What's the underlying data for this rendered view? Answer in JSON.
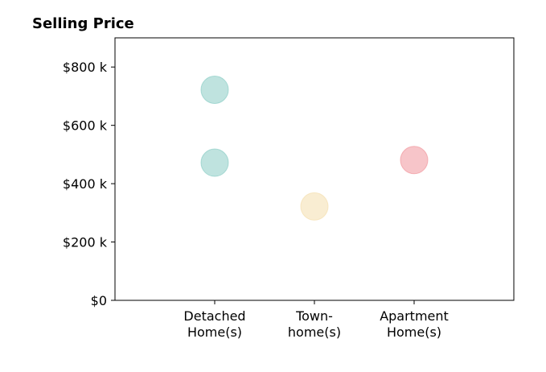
{
  "chart_data": {
    "type": "scatter",
    "title": "Selling Price",
    "xlabel": "",
    "ylabel": "",
    "categories": [
      [
        "Detached",
        "Home(s)"
      ],
      [
        "Town-",
        "home(s)"
      ],
      [
        "Apartment",
        "Home(s)"
      ]
    ],
    "ylim": [
      0,
      900000
    ],
    "yticks": [
      0,
      200000,
      400000,
      600000,
      800000
    ],
    "ytick_labels": [
      "$0",
      "$200 k",
      "$400 k",
      "$600 k",
      "$800 k"
    ],
    "xlim": [
      -1,
      3
    ],
    "grid": false,
    "legend": "none",
    "points": [
      {
        "category_index": 0,
        "y": 722000,
        "color": "#7fc8bf"
      },
      {
        "category_index": 0,
        "y": 472000,
        "color": "#7fc8bf"
      },
      {
        "category_index": 1,
        "y": 322000,
        "color": "#f3dca6"
      },
      {
        "category_index": 2,
        "y": 481000,
        "color": "#f08c93"
      }
    ]
  }
}
